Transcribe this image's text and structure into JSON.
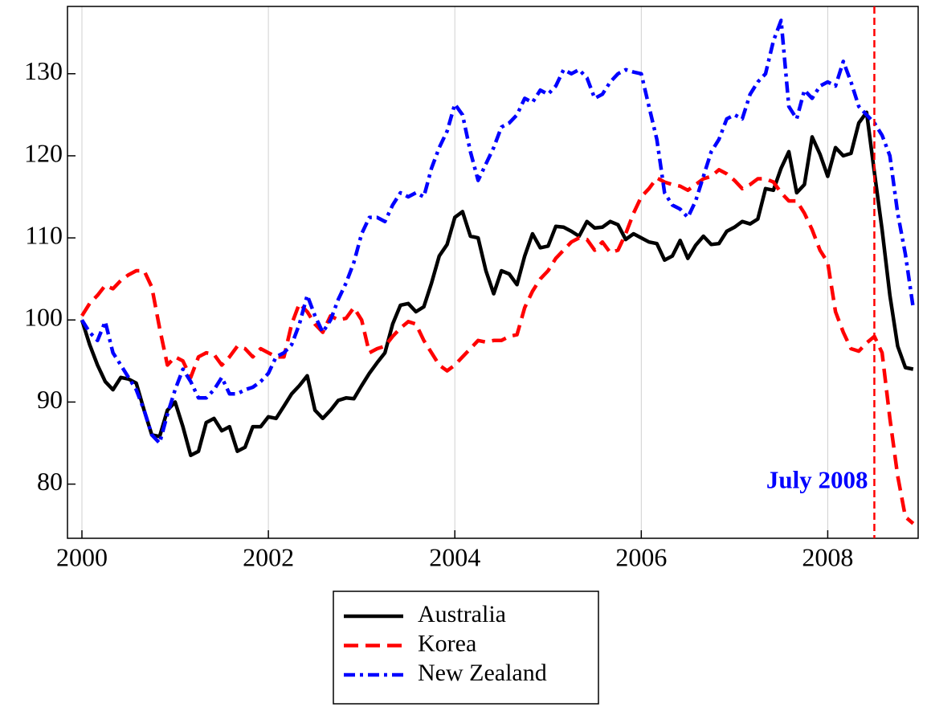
{
  "chart_data": {
    "type": "line",
    "x": [
      2000,
      2000.083,
      2000.167,
      2000.25,
      2000.333,
      2000.417,
      2000.5,
      2000.583,
      2000.667,
      2000.75,
      2000.833,
      2000.917,
      2001,
      2001.083,
      2001.167,
      2001.25,
      2001.333,
      2001.417,
      2001.5,
      2001.583,
      2001.667,
      2001.75,
      2001.833,
      2001.917,
      2002,
      2002.083,
      2002.167,
      2002.25,
      2002.333,
      2002.417,
      2002.5,
      2002.583,
      2002.667,
      2002.75,
      2002.833,
      2002.917,
      2003,
      2003.083,
      2003.167,
      2003.25,
      2003.333,
      2003.417,
      2003.5,
      2003.583,
      2003.667,
      2003.75,
      2003.833,
      2003.917,
      2004,
      2004.083,
      2004.167,
      2004.25,
      2004.333,
      2004.417,
      2004.5,
      2004.583,
      2004.667,
      2004.75,
      2004.833,
      2004.917,
      2005,
      2005.083,
      2005.167,
      2005.25,
      2005.333,
      2005.417,
      2005.5,
      2005.583,
      2005.667,
      2005.75,
      2005.833,
      2005.917,
      2006,
      2006.083,
      2006.167,
      2006.25,
      2006.333,
      2006.417,
      2006.5,
      2006.583,
      2006.667,
      2006.75,
      2006.833,
      2006.917,
      2007,
      2007.083,
      2007.167,
      2007.25,
      2007.333,
      2007.417,
      2007.5,
      2007.583,
      2007.667,
      2007.75,
      2007.833,
      2007.917,
      2008,
      2008.083,
      2008.167,
      2008.25,
      2008.333,
      2008.417,
      2008.5,
      2008.583,
      2008.667,
      2008.75,
      2008.833,
      2008.917
    ],
    "series": [
      {
        "name": "Australia",
        "color": "#000000",
        "style": "solid",
        "values": [
          100,
          97,
          94.5,
          92.5,
          91.5,
          93,
          92.8,
          92.3,
          89,
          86,
          85.8,
          89,
          90,
          87,
          83.5,
          84,
          87.5,
          88,
          86.5,
          87,
          84,
          84.5,
          87,
          87,
          88.2,
          88,
          89.5,
          91,
          92,
          93.2,
          89,
          88,
          89,
          90.2,
          90.5,
          90.4,
          92,
          93.5,
          94.8,
          96,
          99.5,
          101.8,
          102,
          101,
          101.6,
          104.5,
          107.8,
          109.2,
          112.5,
          113.2,
          110.2,
          110,
          106,
          103.2,
          106,
          105.6,
          104.3,
          107.8,
          110.5,
          108.8,
          109,
          111.4,
          111.3,
          110.8,
          110.2,
          112,
          111.2,
          111.3,
          112,
          111.6,
          109.8,
          110.5,
          110,
          109.5,
          109.3,
          107.3,
          107.8,
          109.7,
          107.5,
          109.1,
          110.2,
          109.2,
          109.3,
          110.8,
          111.3,
          112,
          111.7,
          112.3,
          116,
          115.8,
          118.5,
          120.5,
          115.5,
          116.5,
          122.3,
          120.2,
          117.5,
          121,
          120,
          120.3,
          124,
          125.3,
          118,
          111,
          103,
          96.8,
          94.2,
          94
        ]
      },
      {
        "name": "Korea",
        "color": "#ff0000",
        "style": "dashed",
        "values": [
          100.5,
          102,
          103,
          104.2,
          103.8,
          104.8,
          105.5,
          106,
          106,
          104,
          99,
          94.5,
          95.5,
          95,
          93,
          95.5,
          96,
          95.8,
          94.5,
          95.5,
          96.8,
          96.5,
          95.5,
          96.5,
          96,
          95.5,
          95.5,
          99.5,
          102,
          101,
          99.5,
          98.5,
          100.5,
          100,
          100.2,
          101.5,
          100,
          96,
          96.5,
          96.8,
          98,
          99,
          99.8,
          99.5,
          97.5,
          96,
          94.5,
          93.8,
          94.5,
          95.5,
          96.5,
          97.5,
          97.3,
          97.5,
          97.5,
          98,
          98.2,
          101.5,
          103.5,
          105,
          106,
          107.5,
          108.5,
          109.5,
          110,
          109.8,
          108.5,
          109.5,
          108.2,
          108.5,
          110.5,
          113,
          115,
          116,
          117.3,
          116.8,
          116.5,
          116.3,
          115.8,
          116.5,
          117.2,
          117.5,
          118.3,
          117.8,
          117,
          116,
          116.5,
          117.2,
          117.2,
          116.8,
          115.5,
          114.5,
          114.5,
          113,
          111,
          108.5,
          107,
          101,
          98.5,
          96.5,
          96.2,
          97.2,
          98,
          96,
          88,
          81,
          76,
          75.2
        ]
      },
      {
        "name": "New Zealand",
        "color": "#0000ff",
        "style": "dashdot",
        "values": [
          100,
          98.5,
          97.5,
          99.8,
          96,
          94.5,
          93,
          91.5,
          89,
          86,
          85,
          88.5,
          91.5,
          94,
          92.5,
          90.5,
          90.5,
          91.5,
          93,
          91,
          91,
          91.5,
          91.8,
          92.5,
          93.5,
          95.5,
          96,
          97,
          99.5,
          103,
          100.5,
          98.5,
          100,
          102.5,
          104.5,
          107,
          110.5,
          112.5,
          112.5,
          112,
          114,
          115.5,
          115,
          115.5,
          115,
          118.5,
          121,
          123,
          126.3,
          125,
          120.5,
          117,
          119,
          121,
          123.5,
          124,
          125,
          127,
          126.5,
          128,
          127.5,
          128.5,
          130.5,
          130,
          130.5,
          129.5,
          127,
          127.5,
          129,
          130,
          130.5,
          130.2,
          130,
          126,
          122,
          115.5,
          114,
          113.5,
          112.5,
          114.5,
          117.5,
          120.5,
          122,
          124.5,
          125,
          124.5,
          127.5,
          129,
          130,
          134,
          136.5,
          126,
          124.5,
          128,
          127,
          128.5,
          129,
          128.5,
          131.5,
          129,
          126,
          125,
          124,
          122.5,
          120,
          113,
          108,
          101.5
        ]
      }
    ],
    "xlim": [
      1999.845,
      2008.97
    ],
    "ylim": [
      73.4,
      138.2
    ],
    "xticks": [
      2000,
      2002,
      2004,
      2006,
      2008
    ],
    "yticks": [
      80,
      90,
      100,
      110,
      120,
      130
    ],
    "grid": "x",
    "annotations": [
      {
        "text": "July 2008",
        "x": 2008.5,
        "color": "#ff0000",
        "text_color": "#0000ff"
      }
    ],
    "legend": "below"
  }
}
